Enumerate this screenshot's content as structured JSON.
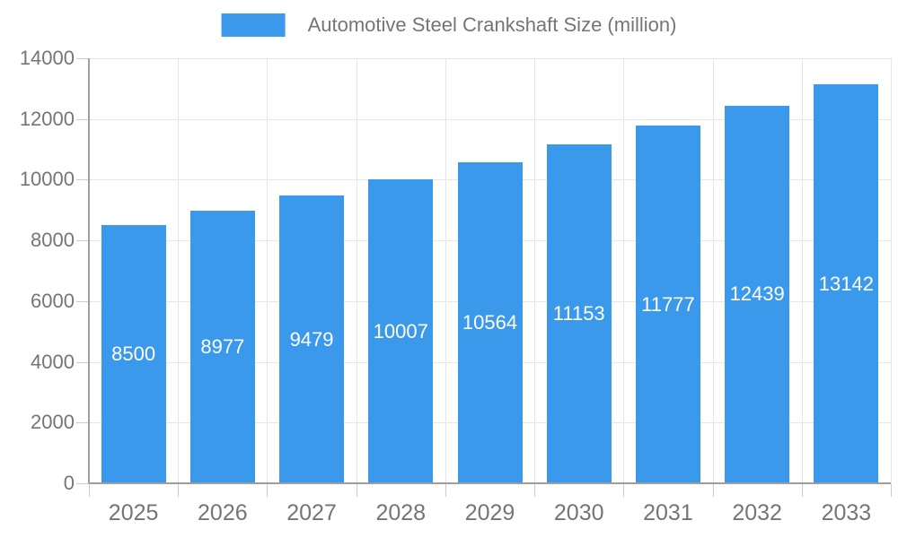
{
  "chart_data": {
    "type": "bar",
    "title": "Automotive Steel Crankshaft Size (million)",
    "categories": [
      "2025",
      "2026",
      "2027",
      "2028",
      "2029",
      "2030",
      "2031",
      "2032",
      "2033"
    ],
    "values": [
      8500,
      8977,
      9479,
      10007,
      10564,
      11153,
      11777,
      12439,
      13142
    ],
    "series": [
      {
        "name": "Automotive Steel Crankshaft Size (million)",
        "values": [
          8500,
          8977,
          9479,
          10007,
          10564,
          11153,
          11777,
          12439,
          13142
        ]
      }
    ],
    "xlabel": "",
    "ylabel": "",
    "ylim": [
      0,
      14000
    ],
    "yticks": [
      0,
      2000,
      4000,
      6000,
      8000,
      10000,
      12000,
      14000
    ],
    "grid": true,
    "legend_position": "top",
    "value_labels": "centered-inside-bars"
  },
  "legend": {
    "label": "Automotive Steel Crankshaft Size (million)"
  },
  "colors": {
    "bar": "#3b99ec",
    "grid": "#e6e6e6",
    "axis": "#9e9e9e",
    "tick": "#cccccc",
    "label_text": "#757575",
    "bar_label_text": "#ffffff",
    "background": "#ffffff"
  }
}
